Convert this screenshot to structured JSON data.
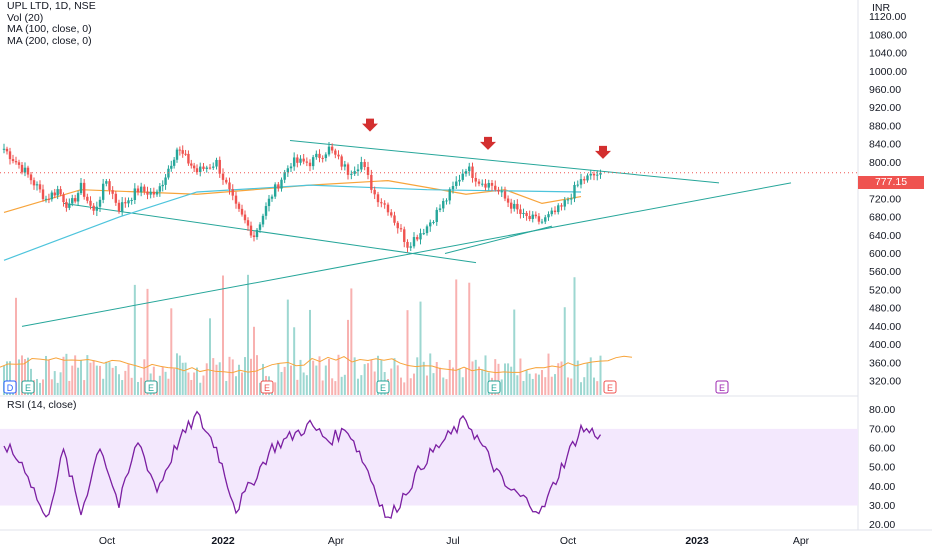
{
  "legend": {
    "title": "UPL LTD, 1D, NSE",
    "vol": "Vol (20)",
    "ma100": "MA (100, close, 0)",
    "ma200": "MA (200, close, 0)",
    "rsi": "RSI (14, close)"
  },
  "price_axis": {
    "unit": "INR",
    "ticks": [
      "1120.00",
      "1080.00",
      "1040.00",
      "1000.00",
      "960.00",
      "920.00",
      "880.00",
      "840.00",
      "800.00",
      "760.00",
      "720.00",
      "680.00",
      "640.00",
      "600.00",
      "560.00",
      "520.00",
      "480.00",
      "440.00",
      "400.00",
      "360.00",
      "320.00"
    ],
    "last_price": "777.15"
  },
  "rsi_axis": {
    "ticks": [
      "80.00",
      "70.00",
      "60.00",
      "50.00",
      "40.00",
      "30.00",
      "20.00"
    ]
  },
  "time_axis": {
    "ticks": [
      "Oct",
      "2022",
      "Apr",
      "Jul",
      "Oct",
      "2023",
      "Apr"
    ]
  },
  "event_badges": [
    "D",
    "E",
    "E",
    "E",
    "E",
    "E",
    "E",
    "E"
  ],
  "colors": {
    "up": "#26a69a",
    "down": "#ef5350",
    "ma100": "#f7a43b",
    "ma200": "#4dc4dc",
    "trendline": "#26a69a",
    "arrow": "#d32f2f",
    "rsi_line": "#7b1fa2",
    "rsi_band": "#f3e8fd"
  },
  "chart_data": {
    "type": "candlestick",
    "symbol": "UPL LTD",
    "interval": "1D",
    "exchange": "NSE",
    "price_ylim": [
      300,
      1140
    ],
    "rsi_ylim": [
      15,
      85
    ],
    "rsi_band": [
      30,
      70
    ],
    "close_path": [
      {
        "t": "2021-08",
        "close": 830
      },
      {
        "t": "2021-08",
        "close": 780
      },
      {
        "t": "2021-09",
        "close": 720
      },
      {
        "t": "2021-09",
        "close": 740
      },
      {
        "t": "2021-09",
        "close": 700
      },
      {
        "t": "2021-10",
        "close": 745
      },
      {
        "t": "2021-10",
        "close": 690
      },
      {
        "t": "2021-10",
        "close": 760
      },
      {
        "t": "2021-11",
        "close": 700
      },
      {
        "t": "2021-11",
        "close": 740
      },
      {
        "t": "2021-12",
        "close": 730
      },
      {
        "t": "2021-12",
        "close": 830
      },
      {
        "t": "2022-01",
        "close": 780
      },
      {
        "t": "2022-01",
        "close": 800
      },
      {
        "t": "2022-02",
        "close": 700
      },
      {
        "t": "2022-02",
        "close": 640
      },
      {
        "t": "2022-03",
        "close": 730
      },
      {
        "t": "2022-03",
        "close": 800
      },
      {
        "t": "2022-04",
        "close": 800
      },
      {
        "t": "2022-04",
        "close": 830
      },
      {
        "t": "2022-05",
        "close": 780
      },
      {
        "t": "2022-05",
        "close": 800
      },
      {
        "t": "2022-05",
        "close": 730
      },
      {
        "t": "2022-06",
        "close": 700
      },
      {
        "t": "2022-06",
        "close": 620
      },
      {
        "t": "2022-07",
        "close": 660
      },
      {
        "t": "2022-07",
        "close": 720
      },
      {
        "t": "2022-08",
        "close": 790
      },
      {
        "t": "2022-08",
        "close": 760
      },
      {
        "t": "2022-08",
        "close": 750
      },
      {
        "t": "2022-09",
        "close": 720
      },
      {
        "t": "2022-09",
        "close": 680
      },
      {
        "t": "2022-10",
        "close": 670
      },
      {
        "t": "2022-10",
        "close": 700
      },
      {
        "t": "2022-11",
        "close": 760
      },
      {
        "t": "2022-11",
        "close": 777.15
      }
    ],
    "ma100_path": [
      {
        "t": "2021-08",
        "value": 690
      },
      {
        "t": "2021-10",
        "value": 740
      },
      {
        "t": "2022-01",
        "value": 730
      },
      {
        "t": "2022-04",
        "value": 750
      },
      {
        "t": "2022-06",
        "value": 760
      },
      {
        "t": "2022-08",
        "value": 730
      },
      {
        "t": "2022-09",
        "value": 740
      },
      {
        "t": "2022-10",
        "value": 710
      },
      {
        "t": "2022-11",
        "value": 725
      }
    ],
    "ma200_path": [
      {
        "t": "2021-08",
        "value": 585
      },
      {
        "t": "2021-11",
        "value": 680
      },
      {
        "t": "2022-01",
        "value": 735
      },
      {
        "t": "2022-04",
        "value": 750
      },
      {
        "t": "2022-07",
        "value": 740
      },
      {
        "t": "2022-11",
        "value": 735
      }
    ],
    "trendlines": [
      {
        "name": "upper",
        "from": {
          "t": "2022-03",
          "price": 848
        },
        "to": {
          "t": "2023-02",
          "price": 755
        }
      },
      {
        "name": "lower-channel",
        "from": {
          "t": "2021-09",
          "price": 710
        },
        "to": {
          "t": "2022-08",
          "price": 580
        }
      },
      {
        "name": "long-support",
        "from": {
          "t": "2021-08",
          "price": 440
        },
        "to": {
          "t": "2023-04",
          "price": 755
        }
      },
      {
        "name": "rising-support",
        "from": {
          "t": "2022-07",
          "price": 600
        },
        "to": {
          "t": "2022-10",
          "price": 660
        }
      }
    ],
    "markers": [
      {
        "type": "down-arrow",
        "t": "2022-05",
        "price": 850
      },
      {
        "type": "down-arrow",
        "t": "2022-08",
        "price": 810
      },
      {
        "type": "down-arrow",
        "t": "2022-11",
        "price": 790
      }
    ],
    "rsi_path": [
      {
        "t": "2021-08",
        "rsi": 62
      },
      {
        "t": "2021-08",
        "rsi": 50
      },
      {
        "t": "2021-09",
        "rsi": 22
      },
      {
        "t": "2021-09",
        "rsi": 58
      },
      {
        "t": "2021-10",
        "rsi": 26
      },
      {
        "t": "2021-10",
        "rsi": 62
      },
      {
        "t": "2021-11",
        "rsi": 30
      },
      {
        "t": "2021-11",
        "rsi": 64
      },
      {
        "t": "2021-12",
        "rsi": 38
      },
      {
        "t": "2021-12",
        "rsi": 62
      },
      {
        "t": "2022-01",
        "rsi": 77
      },
      {
        "t": "2022-01",
        "rsi": 60
      },
      {
        "t": "2022-02",
        "rsi": 28
      },
      {
        "t": "2022-03",
        "rsi": 60
      },
      {
        "t": "2022-04",
        "rsi": 72
      },
      {
        "t": "2022-04",
        "rsi": 64
      },
      {
        "t": "2022-05",
        "rsi": 70
      },
      {
        "t": "2022-05",
        "rsi": 48
      },
      {
        "t": "2022-06",
        "rsi": 22
      },
      {
        "t": "2022-07",
        "rsi": 55
      },
      {
        "t": "2022-08",
        "rsi": 75
      },
      {
        "t": "2022-08",
        "rsi": 58
      },
      {
        "t": "2022-09",
        "rsi": 40
      },
      {
        "t": "2022-10",
        "rsi": 27
      },
      {
        "t": "2022-10",
        "rsi": 50
      },
      {
        "t": "2022-11",
        "rsi": 70
      },
      {
        "t": "2022-11",
        "rsi": 67
      }
    ]
  }
}
